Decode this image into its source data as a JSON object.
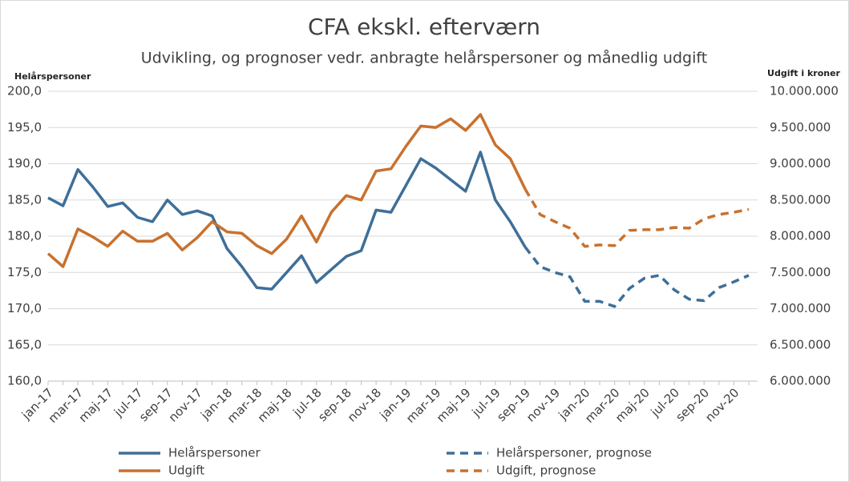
{
  "chart_data": {
    "type": "line",
    "title": "CFA ekskl. efterværn",
    "subtitle": "Udvikling, og prognoser vedr. anbragte helårspersoner og månedlig udgift",
    "y_label": "Helårspersoner",
    "y2_label": "Udgift i kroner",
    "categories": [
      "jan-17",
      null,
      "mar-17",
      null,
      "maj-17",
      null,
      "jul-17",
      null,
      "sep-17",
      null,
      "nov-17",
      null,
      "jan-18",
      null,
      "mar-18",
      null,
      "maj-18",
      null,
      "jul-18",
      null,
      "sep-18",
      null,
      "nov-18",
      null,
      "jan-19",
      null,
      "mar-19",
      null,
      "maj-19",
      null,
      "jul-19",
      null,
      "sep-19",
      null,
      "nov-19",
      null,
      "jan-20",
      null,
      "mar-20",
      null,
      "maj-20",
      null,
      "jul-20",
      null,
      "sep-20",
      null,
      "nov-20",
      null
    ],
    "ylim": [
      160,
      200
    ],
    "yticks": [
      {
        "value": 160,
        "label": "160,0"
      },
      {
        "value": 165,
        "label": "165,0"
      },
      {
        "value": 170,
        "label": "170,0"
      },
      {
        "value": 175,
        "label": "175,0"
      },
      {
        "value": 180,
        "label": "180,0"
      },
      {
        "value": 185,
        "label": "185,0"
      },
      {
        "value": 190,
        "label": "190,0"
      },
      {
        "value": 195,
        "label": "195,0"
      },
      {
        "value": 200,
        "label": "200,0"
      }
    ],
    "y2lim": [
      6000000,
      10000000
    ],
    "y2ticks": [
      {
        "value": 6000000,
        "label": "6.000.000"
      },
      {
        "value": 6500000,
        "label": "6.500.000"
      },
      {
        "value": 7000000,
        "label": "7.000.000"
      },
      {
        "value": 7500000,
        "label": "7.500.000"
      },
      {
        "value": 8000000,
        "label": "8.000.000"
      },
      {
        "value": 8500000,
        "label": "8.500.000"
      },
      {
        "value": 9000000,
        "label": "9.000.000"
      },
      {
        "value": 9500000,
        "label": "9.500.000"
      },
      {
        "value": 10000000,
        "label": "10.000.000"
      }
    ],
    "grid": true,
    "legend": "bottom",
    "series": [
      {
        "name": "Helårspersoner",
        "color": "#3e6f98",
        "dash": false,
        "axis": "y",
        "values": [
          185.3,
          184.2,
          189.2,
          186.8,
          184.1,
          184.6,
          182.6,
          182.0,
          185.0,
          183.0,
          183.5,
          182.8,
          178.3,
          175.8,
          172.9,
          172.7,
          175.0,
          177.3,
          173.6,
          175.4,
          177.2,
          178.0,
          183.6,
          183.3,
          187.0,
          190.7,
          189.4,
          187.8,
          186.2,
          191.6,
          185.0,
          182.0,
          178.5,
          null,
          null,
          null,
          null,
          null,
          null,
          null,
          null,
          null,
          null,
          null,
          null,
          null,
          null,
          null
        ]
      },
      {
        "name": "Helårspersoner, prognose",
        "color": "#3e6f98",
        "dash": true,
        "axis": "y",
        "values": [
          null,
          null,
          null,
          null,
          null,
          null,
          null,
          null,
          null,
          null,
          null,
          null,
          null,
          null,
          null,
          null,
          null,
          null,
          null,
          null,
          null,
          null,
          null,
          null,
          null,
          null,
          null,
          null,
          null,
          null,
          null,
          null,
          178.5,
          175.8,
          175.0,
          174.4,
          171.0,
          171.0,
          170.3,
          172.8,
          174.2,
          174.6,
          172.6,
          171.3,
          171.1,
          172.9,
          173.7,
          174.6
        ]
      },
      {
        "name": "Udgift",
        "color": "#c8712e",
        "dash": false,
        "axis": "y2",
        "values": [
          7760000,
          7580000,
          8100000,
          7990000,
          7860000,
          8070000,
          7930000,
          7930000,
          8040000,
          7810000,
          7980000,
          8200000,
          8060000,
          8040000,
          7870000,
          7760000,
          7960000,
          8280000,
          7920000,
          8330000,
          8560000,
          8500000,
          8900000,
          8930000,
          9240000,
          9520000,
          9500000,
          9620000,
          9460000,
          9680000,
          9260000,
          9070000,
          8650000,
          null,
          null,
          null,
          null,
          null,
          null,
          null,
          null,
          null,
          null,
          null,
          null,
          null,
          null,
          null
        ]
      },
      {
        "name": "Udgift, prognose",
        "color": "#c8712e",
        "dash": true,
        "axis": "y2",
        "values": [
          null,
          null,
          null,
          null,
          null,
          null,
          null,
          null,
          null,
          null,
          null,
          null,
          null,
          null,
          null,
          null,
          null,
          null,
          null,
          null,
          null,
          null,
          null,
          null,
          null,
          null,
          null,
          null,
          null,
          null,
          null,
          null,
          8650000,
          8300000,
          8200000,
          8110000,
          7860000,
          7880000,
          7870000,
          8080000,
          8090000,
          8090000,
          8120000,
          8110000,
          8240000,
          8300000,
          8330000,
          8370000
        ]
      }
    ]
  }
}
